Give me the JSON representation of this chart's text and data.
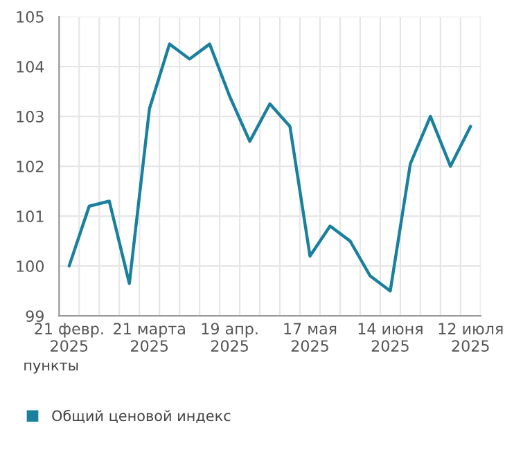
{
  "chart_data": {
    "type": "line",
    "categories": [
      "21 февр.\n2025",
      null,
      null,
      null,
      "21 марта\n2025",
      null,
      null,
      null,
      "19 апр.\n2025",
      null,
      null,
      null,
      "17 мая\n2025",
      null,
      null,
      null,
      "14 июня\n2025",
      null,
      null,
      null,
      "12 июля\n2025"
    ],
    "series": [
      {
        "name": "Общий ценовой индекс",
        "color": "#1a809e",
        "values": [
          100,
          101.2,
          101.3,
          99.65,
          103.15,
          104.45,
          104.15,
          104.45,
          103.4,
          102.5,
          103.25,
          102.8,
          100.2,
          100.8,
          100.5,
          99.8,
          99.5,
          102.05,
          103.0,
          102.0,
          102.8
        ]
      }
    ],
    "ylabel": "пункты",
    "ylim": [
      99,
      105
    ],
    "yticks": [
      99,
      100,
      101,
      102,
      103,
      104,
      105
    ],
    "grid": true,
    "legend": "bottom left",
    "marker": "none",
    "line_style": "solid"
  }
}
